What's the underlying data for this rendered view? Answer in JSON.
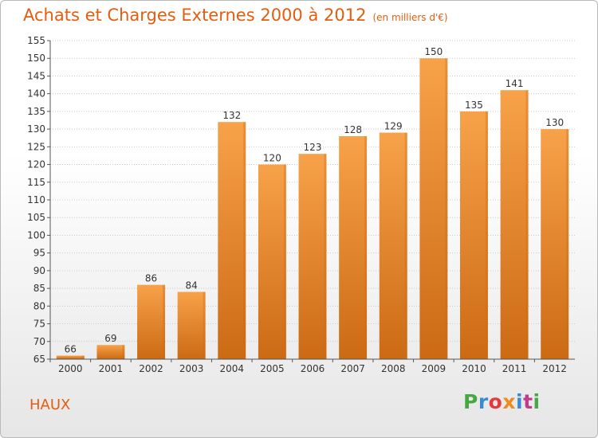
{
  "title": "Achats et Charges Externes 2000 à 2012",
  "subtitle": "(en milliers d'€)",
  "commune": "HAUX",
  "logo": {
    "text": "Proxiti",
    "colors": [
      "#45a843",
      "#3a8ad0",
      "#e23b3b",
      "#f08a1d",
      "#3a8ad0",
      "#c23a8e",
      "#45a843"
    ]
  },
  "colors": {
    "bar": "#f0932e",
    "bar_dark": "#cf6a12",
    "title": "#e65c0f",
    "grid": "#c9c9c9"
  },
  "chart_data": {
    "type": "bar",
    "categories": [
      "2000",
      "2001",
      "2002",
      "2003",
      "2004",
      "2005",
      "2006",
      "2007",
      "2008",
      "2009",
      "2010",
      "2011",
      "2012"
    ],
    "values": [
      66,
      69,
      86,
      84,
      132,
      120,
      123,
      128,
      129,
      150,
      135,
      141,
      130
    ],
    "ylim": [
      65,
      155
    ],
    "yticks": [
      65,
      70,
      75,
      80,
      85,
      90,
      95,
      100,
      105,
      110,
      115,
      120,
      125,
      130,
      135,
      140,
      145,
      150,
      155
    ],
    "grid": true,
    "xlabel": "",
    "ylabel": ""
  }
}
